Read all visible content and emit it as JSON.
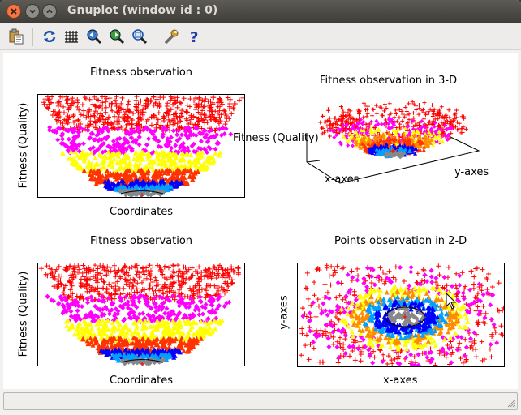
{
  "window": {
    "title": "Gnuplot (window id : 0)",
    "buttons": [
      "close",
      "minimize",
      "maximize"
    ]
  },
  "toolbar": {
    "items": [
      {
        "name": "copy-clipboard",
        "icon": "clipboard-icon"
      },
      {
        "name": "replot",
        "icon": "refresh-icon"
      },
      {
        "name": "toggle-grid",
        "icon": "grid-icon"
      },
      {
        "name": "previous-zoom",
        "icon": "zoom-previous-icon"
      },
      {
        "name": "next-zoom",
        "icon": "zoom-next-icon"
      },
      {
        "name": "autoscale",
        "icon": "zoom-fit-icon"
      },
      {
        "name": "options",
        "icon": "wrench-icon"
      },
      {
        "name": "help",
        "icon": "help-icon"
      }
    ]
  },
  "colors": {
    "red": "#ff0000",
    "magenta": "#ff00ff",
    "yellow": "#ffff00",
    "orange": "#ff8c00",
    "red_orange": "#ff3300",
    "blue": "#0000ff",
    "cyan": "#00a0ff",
    "gray": "#888888"
  },
  "plots": {
    "top_left": {
      "title": "Fitness observation",
      "xlabel": "Coordinates",
      "ylabel": "Fitness (Quality)"
    },
    "top_right": {
      "title": "Fitness observation in 3-D",
      "zlabel": "Fitness (Quality)",
      "xlabel": "x-axes",
      "ylabel": "y-axes"
    },
    "bottom_left": {
      "title": "Fitness observation",
      "xlabel": "Coordinates",
      "ylabel": "Fitness (Quality)"
    },
    "bottom_right": {
      "title": "Points observation in 2-D",
      "xlabel": "x-axes",
      "ylabel": "y-axes"
    }
  },
  "status": {
    "text": ""
  }
}
